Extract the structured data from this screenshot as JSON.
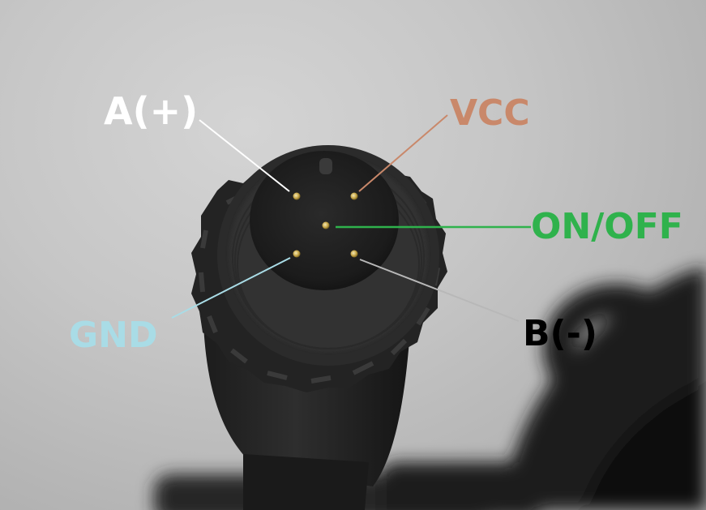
{
  "photo": {
    "subject": "connector-end-view"
  },
  "pins": {
    "a_plus": {
      "label": "A(+)",
      "color": "#ffffff"
    },
    "vcc": {
      "label": "VCC",
      "color": "#c9886a"
    },
    "on_off": {
      "label": "ON/OFF",
      "color": "#2fb24c"
    },
    "gnd": {
      "label": "GND",
      "color": "#a9dce6"
    },
    "b_minus": {
      "label": "B(-)",
      "color": "#000000"
    }
  }
}
